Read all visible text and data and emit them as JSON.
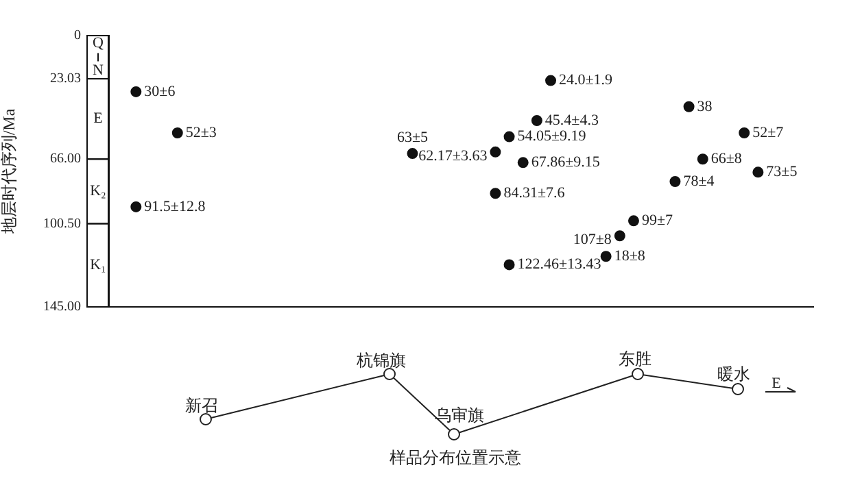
{
  "chart_data": {
    "type": "scatter",
    "ylabel": "地层时代序列/Ma",
    "categories": [
      null,
      null,
      null,
      null,
      null,
      null,
      null,
      null,
      null,
      null,
      null,
      null,
      null,
      null,
      null,
      null,
      null,
      null,
      null,
      null,
      null,
      null,
      null,
      null,
      null,
      null,
      null,
      null,
      null,
      null,
      null,
      null,
      null,
      null,
      null,
      null,
      null,
      null,
      null,
      null,
      null,
      null,
      null,
      null,
      null,
      null,
      null,
      null,
      null,
      null,
      null,
      null
    ],
    "series": [
      {
        "color": "#111111",
        "values": [
          null,
          null,
          30,
          null,
          null,
          52,
          null,
          null,
          null,
          null,
          null,
          null,
          null,
          null,
          null,
          null,
          null,
          null,
          null,
          null,
          null,
          null,
          63,
          null,
          null,
          null,
          null,
          null,
          62.17,
          54.05,
          67.86,
          45.4,
          24.0,
          null,
          null,
          null,
          118,
          107,
          99,
          null,
          null,
          78,
          38,
          66,
          null,
          null,
          52,
          73,
          null,
          null,
          null,
          null
        ],
        "value_labels": [
          null,
          null,
          "30±6",
          null,
          null,
          "52±3",
          null,
          null,
          null,
          null,
          null,
          null,
          null,
          null,
          null,
          null,
          null,
          null,
          null,
          null,
          null,
          null,
          "63±5",
          null,
          null,
          null,
          null,
          null,
          "62.17±3.63",
          "54.05±9.19",
          "67.86±9.15",
          "45.4±4.3",
          "24.0±1.9",
          null,
          null,
          null,
          "18±8",
          "107±8",
          "99±7",
          null,
          null,
          "78±4",
          "38",
          "66±8",
          null,
          null,
          "52±7",
          "73±5",
          null,
          null,
          null,
          null
        ]
      },
      {
        "color": "#111111",
        "values": [
          null,
          null,
          91.5,
          null,
          null,
          null,
          null,
          null,
          null,
          null,
          null,
          null,
          null,
          null,
          null,
          null,
          null,
          null,
          null,
          null,
          null,
          null,
          null,
          null,
          null,
          null,
          null,
          null,
          84.31,
          122.46,
          null,
          null,
          null,
          null,
          null,
          null,
          null,
          null,
          null,
          null,
          null,
          null,
          null,
          null,
          null,
          null,
          null,
          null,
          null,
          null,
          null,
          null
        ],
        "value_labels": [
          null,
          null,
          "91.5±12.8",
          null,
          null,
          null,
          null,
          null,
          null,
          null,
          null,
          null,
          null,
          null,
          null,
          null,
          null,
          null,
          null,
          null,
          null,
          null,
          null,
          null,
          null,
          null,
          null,
          null,
          "84.31±7.6",
          "122.46±13.43",
          null,
          null,
          null,
          null,
          null,
          null,
          null,
          null,
          null,
          null,
          null,
          null,
          null,
          null,
          null,
          null,
          null,
          null,
          null,
          null,
          null,
          null
        ]
      }
    ],
    "ylim": [
      145,
      0
    ],
    "yticks": [
      0,
      23.03,
      {
        "value": 66,
        "label": "66.00"
      },
      {
        "value": 100.5,
        "label": "100.50"
      },
      {
        "value": 145,
        "label": "145.00"
      }
    ],
    "annotations": [
      "Q",
      "N",
      "E",
      "K₂",
      "K₁",
      "新召",
      "杭锦旗",
      "乌审旗",
      "东胜",
      "暖水",
      "E",
      "样品分布位置示意"
    ],
    "marker": "circle",
    "grid": false,
    "legend": false,
    "tick_labels": "y"
  }
}
